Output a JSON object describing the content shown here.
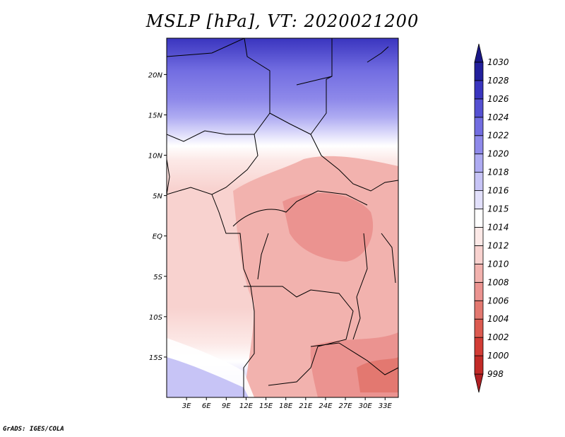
{
  "chart_data": {
    "type": "heatmap",
    "title": "MSLP [hPa], VT: 2020021200",
    "variable": "MSLP",
    "units": "hPa",
    "valid_time": "2020021200",
    "x_ticks": [
      "3E",
      "6E",
      "9E",
      "12E",
      "15E",
      "18E",
      "21E",
      "24E",
      "27E",
      "30E",
      "33E"
    ],
    "x_tick_values": [
      3,
      6,
      9,
      12,
      15,
      18,
      21,
      24,
      27,
      30,
      33
    ],
    "y_ticks": [
      "20N",
      "15N",
      "10N",
      "5N",
      "EQ",
      "5S",
      "10S",
      "15S"
    ],
    "y_tick_values": [
      20,
      15,
      10,
      5,
      0,
      -5,
      -10,
      -15
    ],
    "lon_range": [
      0,
      35
    ],
    "lat_range": [
      -20,
      24.5
    ],
    "colorbar": {
      "levels": [
        "998",
        "1000",
        "1002",
        "1004",
        "1006",
        "1008",
        "1010",
        "1012",
        "1014",
        "1015",
        "1016",
        "1018",
        "1020",
        "1022",
        "1024",
        "1026",
        "1028",
        "1030"
      ],
      "level_values": [
        998,
        1000,
        1002,
        1004,
        1006,
        1008,
        1010,
        1012,
        1014,
        1015,
        1016,
        1018,
        1020,
        1022,
        1024,
        1026,
        1028,
        1030
      ],
      "colors_low_to_high": [
        "#b01f23",
        "#c22a27",
        "#d23c35",
        "#dc5a50",
        "#e37870",
        "#eb9390",
        "#f2b2ae",
        "#f8d2cf",
        "#fce9e7",
        "#ffffff",
        "#e2e0fb",
        "#c7c4f6",
        "#aeabf2",
        "#8e89ea",
        "#726de1",
        "#5550d2",
        "#3a35bf",
        "#221f9c",
        "#1a1787"
      ]
    }
  },
  "footer": "GrADS: IGES/COLA"
}
